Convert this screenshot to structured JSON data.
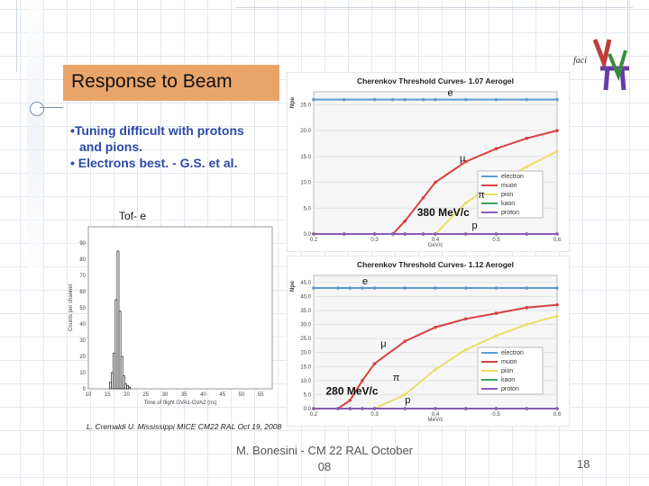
{
  "slide": {
    "title": "Response to Beam",
    "bullets": [
      "•Tuning difficult with protons",
      "  and pions.",
      "• Electrons best. - G.S. et al."
    ],
    "histogram_label": "Tof- e",
    "histogram_credit": "L. Cremaldi U. Mississippi MICE CM22 RAL Oct 19, 2008",
    "footer_line1": "M. Bonesini - CM 22 RAL October",
    "footer_line2": "08",
    "page_number": "18",
    "logo_text": "faci"
  },
  "chart_data": [
    {
      "type": "line",
      "title": "Cherenkov Threshold Curves- 1.07 Aerogel",
      "xlabel": "GeV/c",
      "ylabel": "Npe",
      "xlim": [
        0.2,
        0.6
      ],
      "ylim": [
        0,
        27.5
      ],
      "xticks": [
        "0.2",
        "0.3",
        "0.4",
        "0.5",
        "0.6"
      ],
      "yticks": [
        "0.0",
        "5.0",
        "10.0",
        "15.0",
        "20.0",
        "25.0"
      ],
      "legend_position": "right",
      "threshold_label": "380 MeV/c",
      "particle_labels": [
        "e",
        "μ",
        "π",
        "p"
      ],
      "x": [
        0.2,
        0.25,
        0.3,
        0.33,
        0.35,
        0.38,
        0.4,
        0.45,
        0.5,
        0.55,
        0.6
      ],
      "series": [
        {
          "name": "electron",
          "color": "#5b9bd5",
          "values": [
            26,
            26,
            26,
            26,
            26,
            26,
            26,
            26,
            26,
            26,
            26
          ]
        },
        {
          "name": "muon",
          "color": "#d94040",
          "values": [
            0,
            0,
            0,
            0,
            2.5,
            7,
            10,
            14,
            16.5,
            18.5,
            20
          ]
        },
        {
          "name": "pion",
          "color": "#e8df6a",
          "values": [
            0,
            0,
            0,
            0,
            0,
            0,
            0,
            6,
            10,
            13,
            16
          ]
        },
        {
          "name": "kaon",
          "color": "#3aa05a",
          "values": [
            0,
            0,
            0,
            0,
            0,
            0,
            0,
            0,
            0,
            0,
            0
          ]
        },
        {
          "name": "proton",
          "color": "#8a5bb5",
          "values": [
            0,
            0,
            0,
            0,
            0,
            0,
            0,
            0,
            0,
            0,
            0
          ]
        }
      ]
    },
    {
      "type": "line",
      "title": "Cherenkov Threshold Curves- 1.12 Aerogel",
      "xlabel": "MeV/c",
      "ylabel": "Npe",
      "xlim": [
        0.2,
        0.6
      ],
      "ylim": [
        0,
        47.5
      ],
      "xticks": [
        "0.2",
        "0.3",
        "0.4",
        "0.5",
        "0.6"
      ],
      "yticks": [
        "0.0",
        "5.0",
        "10.0",
        "15.0",
        "20.0",
        "25.0",
        "30.0",
        "35.0",
        "40.0",
        "45.0"
      ],
      "legend_position": "right",
      "threshold_label": "280 MeV/c",
      "particle_labels": [
        "e",
        "μ",
        "π",
        "p"
      ],
      "x": [
        0.2,
        0.24,
        0.26,
        0.28,
        0.3,
        0.35,
        0.4,
        0.45,
        0.5,
        0.55,
        0.6
      ],
      "series": [
        {
          "name": "electron",
          "color": "#5b9bd5",
          "values": [
            43,
            43,
            43,
            43,
            43,
            43,
            43,
            43,
            43,
            43,
            43
          ]
        },
        {
          "name": "muon",
          "color": "#d94040",
          "values": [
            0,
            0,
            3,
            10,
            16,
            24,
            29,
            32,
            34,
            36,
            37
          ]
        },
        {
          "name": "pion",
          "color": "#e8df6a",
          "values": [
            0,
            0,
            0,
            0,
            0,
            5,
            14,
            21,
            26,
            30,
            33
          ]
        },
        {
          "name": "kaon",
          "color": "#3aa05a",
          "values": [
            0,
            0,
            0,
            0,
            0,
            0,
            0,
            0,
            0,
            0,
            0
          ]
        },
        {
          "name": "proton",
          "color": "#8a5bb5",
          "values": [
            0,
            0,
            0,
            0,
            0,
            0,
            0,
            0,
            0,
            0,
            0
          ]
        }
      ]
    },
    {
      "type": "bar",
      "title": "Tof- e",
      "xlabel": "Time of flight GVA1-GVA2 (ns)",
      "ylabel": "Counts per channel",
      "xticks": [
        "10",
        "15",
        "20",
        "25",
        "30",
        "35",
        "40",
        "45",
        "50",
        "55"
      ],
      "yticks": [
        "0",
        "10",
        "20",
        "30",
        "40",
        "50",
        "60",
        "70",
        "80",
        "90"
      ],
      "xlim": [
        10,
        58
      ],
      "ylim": [
        0,
        100
      ],
      "categories": [
        "15.5",
        "16.0",
        "16.5",
        "17.0",
        "17.5",
        "18.0",
        "18.5",
        "19.0",
        "19.5",
        "20.0",
        "20.5"
      ],
      "values": [
        4,
        10,
        22,
        55,
        85,
        48,
        20,
        8,
        3,
        2,
        1
      ]
    }
  ]
}
